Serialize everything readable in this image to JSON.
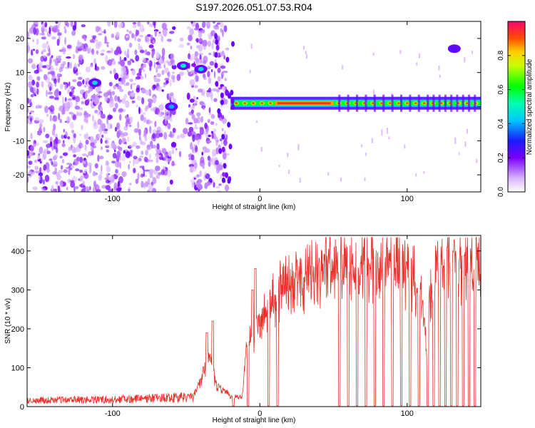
{
  "figure": {
    "title": "S197.2026.051.07.53.R04"
  },
  "colors": {
    "snr_line": "#e8302a",
    "frame": "#000000",
    "background": "#ffffff"
  },
  "chart_data": [
    {
      "type": "heatmap",
      "name": "spectrogram",
      "xlabel": "Height of straight line (km)",
      "ylabel": "Frequency (Hz)",
      "xlim": [
        -158,
        150
      ],
      "ylim": [
        -25,
        25
      ],
      "xticks": [
        -100,
        0,
        100
      ],
      "xtick_labels": [
        "-100",
        "0",
        "100"
      ],
      "yticks": [
        -20,
        -10,
        0,
        10,
        20
      ],
      "ytick_labels": [
        "-20",
        "-10",
        "0",
        "10",
        "20"
      ],
      "colorbar": {
        "label": "Normalized spectral amplitude",
        "range": [
          0,
          1
        ],
        "ticks": [
          0.0,
          0.2,
          0.4,
          0.6,
          0.8
        ],
        "tick_labels": [
          "0.0",
          "0.2",
          "0.4",
          "0.6",
          "0.8"
        ]
      },
      "features": {
        "noise_region_x": [
          -158,
          -22
        ],
        "main_band_x": [
          -22,
          150
        ],
        "main_band_freq_hz": 1,
        "strong_band_x": [
          10,
          50
        ],
        "spots": [
          {
            "x": -112,
            "y": 7,
            "amp": 0.35
          },
          {
            "x": -60,
            "y": 0,
            "amp": 0.3
          },
          {
            "x": -52,
            "y": 12,
            "amp": 0.4
          },
          {
            "x": -40,
            "y": 11,
            "amp": 0.35
          },
          {
            "x": 132,
            "y": 17,
            "amp": 0.15
          }
        ]
      }
    },
    {
      "type": "line",
      "name": "snr",
      "xlabel": "Height of straight line (km)",
      "ylabel": "SNR (10 * v/v)",
      "xlim": [
        -158,
        150
      ],
      "ylim": [
        0,
        440
      ],
      "xticks": [
        -100,
        0,
        100
      ],
      "xtick_labels": [
        "-100",
        "0",
        "100"
      ],
      "yticks": [
        0,
        100,
        200,
        300,
        400
      ],
      "ytick_labels": [
        "0",
        "100",
        "200",
        "300",
        "400"
      ],
      "envelope": {
        "x": [
          -158,
          -80,
          -45,
          -38,
          -34,
          -30,
          -20,
          -12,
          -10,
          -5,
          0,
          10,
          20,
          40,
          60,
          80,
          95,
          105,
          110,
          113,
          115,
          120,
          130,
          150
        ],
        "y": [
          18,
          22,
          28,
          100,
          160,
          60,
          30,
          25,
          130,
          200,
          240,
          300,
          340,
          380,
          400,
          400,
          390,
          360,
          300,
          160,
          300,
          380,
          400,
          390
        ]
      },
      "spikes": [
        {
          "x": -36,
          "y": 190
        },
        {
          "x": -32,
          "y": 220
        },
        {
          "x": -5,
          "y": 300
        },
        {
          "x": -3,
          "y": 355
        }
      ],
      "dropouts_x": [
        -18,
        -8,
        6,
        12,
        54,
        60,
        66,
        72,
        78,
        84,
        90,
        96,
        102,
        108,
        114,
        118,
        122,
        126,
        130,
        134,
        138,
        142,
        146
      ]
    }
  ]
}
